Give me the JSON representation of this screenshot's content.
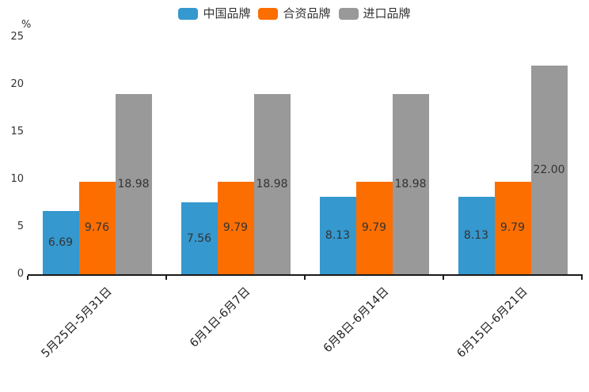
{
  "chart_data": {
    "type": "bar",
    "title": "",
    "xlabel": "",
    "ylabel": "%",
    "ylim": [
      0,
      25
    ],
    "yticks": [
      0,
      5,
      10,
      15,
      20,
      25
    ],
    "grid": false,
    "legend_position": "top",
    "value_labels": true,
    "value_label_decimals": 2,
    "categories": [
      "5月25日-5月31日",
      "6月1日-6月7日",
      "6月8日-6月14日",
      "6月15日-6月21日"
    ],
    "series": [
      {
        "name": "中国品牌",
        "color": "#3598CE",
        "values": [
          6.69,
          7.56,
          8.13,
          8.13
        ]
      },
      {
        "name": "合资品牌",
        "color": "#FC6E00",
        "values": [
          9.76,
          9.79,
          9.79,
          9.79
        ]
      },
      {
        "name": "进口品牌",
        "color": "#999999",
        "values": [
          18.98,
          18.98,
          18.98,
          22.0
        ]
      }
    ],
    "axis_color": "#1a1a1a",
    "text_color": "#333333"
  }
}
